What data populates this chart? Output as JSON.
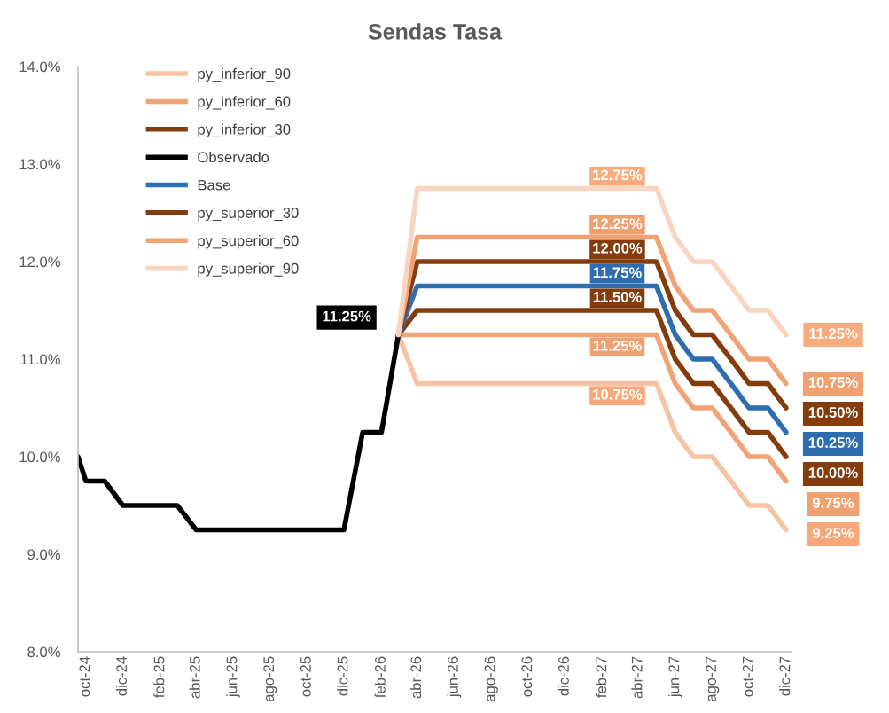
{
  "chart_data": {
    "type": "line",
    "title": "Sendas Tasa",
    "xlim": [
      "2024-09-18",
      "2027-12-10"
    ],
    "xticks": [
      {
        "value": "2024-10",
        "label": "oct-24"
      },
      {
        "value": "2024-12",
        "label": "dic-24"
      },
      {
        "value": "2025-02",
        "label": "feb-25"
      },
      {
        "value": "2025-04",
        "label": "abr-25"
      },
      {
        "value": "2025-06",
        "label": "jun-25"
      },
      {
        "value": "2025-08",
        "label": "ago-25"
      },
      {
        "value": "2025-10",
        "label": "oct-25"
      },
      {
        "value": "2025-12",
        "label": "dic-25"
      },
      {
        "value": "2026-02",
        "label": "feb-26"
      },
      {
        "value": "2026-04",
        "label": "abr-26"
      },
      {
        "value": "2026-06",
        "label": "jun-26"
      },
      {
        "value": "2026-08",
        "label": "ago-26"
      },
      {
        "value": "2026-10",
        "label": "oct-26"
      },
      {
        "value": "2026-12",
        "label": "dic-26"
      },
      {
        "value": "2027-02",
        "label": "feb-27"
      },
      {
        "value": "2027-04",
        "label": "abr-27"
      },
      {
        "value": "2027-06",
        "label": "jun-27"
      },
      {
        "value": "2027-08",
        "label": "ago-27"
      },
      {
        "value": "2027-10",
        "label": "oct-27"
      },
      {
        "value": "2027-12",
        "label": "dic-27"
      }
    ],
    "ylim": [
      8,
      14
    ],
    "yticks": [
      {
        "value": 8,
        "label": "8.0%"
      },
      {
        "value": 9,
        "label": "9.0%"
      },
      {
        "value": 10,
        "label": "10.0%"
      },
      {
        "value": 11,
        "label": "11.0%"
      },
      {
        "value": 12,
        "label": "12.0%"
      },
      {
        "value": 13,
        "label": "13.0%"
      },
      {
        "value": 14,
        "label": "14.0%"
      }
    ],
    "grid": false,
    "legend": "top left",
    "marker": "none",
    "line_style": "solid",
    "series": [
      {
        "name": "py_inferior_90",
        "color": "#f6c3a4",
        "x": [
          "2026-03",
          "2026-04",
          "2026-05",
          "2026-06",
          "2026-07",
          "2026-08",
          "2026-09",
          "2026-10",
          "2026-11",
          "2026-12",
          "2027-01",
          "2027-02",
          "2027-03",
          "2027-04",
          "2027-05",
          "2027-06",
          "2027-07",
          "2027-08",
          "2027-09",
          "2027-10",
          "2027-11",
          "2027-12"
        ],
        "values": [
          11.25,
          10.75,
          10.75,
          10.75,
          10.75,
          10.75,
          10.75,
          10.75,
          10.75,
          10.75,
          10.75,
          10.75,
          10.75,
          10.75,
          10.75,
          10.25,
          10.0,
          10.0,
          9.75,
          9.5,
          9.5,
          9.25
        ],
        "value_labels": [
          null,
          null,
          null,
          null,
          null,
          null,
          null,
          null,
          null,
          null,
          null,
          "10.75%",
          null,
          null,
          null,
          null,
          null,
          null,
          null,
          null,
          null,
          "9.25%"
        ]
      },
      {
        "name": "py_inferior_60",
        "color": "#f0a375",
        "x": [
          "2026-03",
          "2026-04",
          "2026-05",
          "2026-06",
          "2026-07",
          "2026-08",
          "2026-09",
          "2026-10",
          "2026-11",
          "2026-12",
          "2027-01",
          "2027-02",
          "2027-03",
          "2027-04",
          "2027-05",
          "2027-06",
          "2027-07",
          "2027-08",
          "2027-09",
          "2027-10",
          "2027-11",
          "2027-12"
        ],
        "values": [
          11.25,
          11.25,
          11.25,
          11.25,
          11.25,
          11.25,
          11.25,
          11.25,
          11.25,
          11.25,
          11.25,
          11.25,
          11.25,
          11.25,
          11.25,
          10.75,
          10.5,
          10.5,
          10.25,
          10.0,
          10.0,
          9.75
        ],
        "value_labels": [
          null,
          null,
          null,
          null,
          null,
          null,
          null,
          null,
          null,
          null,
          null,
          "11.25%",
          null,
          null,
          null,
          null,
          null,
          null,
          null,
          null,
          null,
          "9.75%"
        ]
      },
      {
        "name": "py_inferior_30",
        "color": "#843c0c",
        "x": [
          "2026-03",
          "2026-04",
          "2026-05",
          "2026-06",
          "2026-07",
          "2026-08",
          "2026-09",
          "2026-10",
          "2026-11",
          "2026-12",
          "2027-01",
          "2027-02",
          "2027-03",
          "2027-04",
          "2027-05",
          "2027-06",
          "2027-07",
          "2027-08",
          "2027-09",
          "2027-10",
          "2027-11",
          "2027-12"
        ],
        "values": [
          11.25,
          11.5,
          11.5,
          11.5,
          11.5,
          11.5,
          11.5,
          11.5,
          11.5,
          11.5,
          11.5,
          11.5,
          11.5,
          11.5,
          11.5,
          11.0,
          10.75,
          10.75,
          10.5,
          10.25,
          10.25,
          10.0
        ],
        "value_labels": [
          null,
          null,
          null,
          null,
          null,
          null,
          null,
          null,
          null,
          null,
          null,
          "11.50%",
          null,
          null,
          null,
          null,
          null,
          null,
          null,
          null,
          null,
          "10.00%"
        ]
      },
      {
        "name": "Observado",
        "color": "#000000",
        "x": [
          "2024-09-18",
          "2024-10",
          "2024-11",
          "2024-12",
          "2025-01",
          "2025-02",
          "2025-03",
          "2025-04",
          "2025-05",
          "2025-06",
          "2025-07",
          "2025-08",
          "2025-09",
          "2025-10",
          "2025-11",
          "2025-12",
          "2026-01",
          "2026-02",
          "2026-03"
        ],
        "values": [
          10.0,
          9.75,
          9.75,
          9.5,
          9.5,
          9.5,
          9.5,
          9.25,
          9.25,
          9.25,
          9.25,
          9.25,
          9.25,
          9.25,
          9.25,
          9.25,
          10.25,
          10.25,
          11.25
        ],
        "value_labels": [
          null,
          null,
          null,
          null,
          null,
          null,
          null,
          null,
          null,
          null,
          null,
          null,
          null,
          null,
          null,
          null,
          null,
          null,
          "11.25%"
        ]
      },
      {
        "name": "Base",
        "color": "#2e6eb0",
        "x": [
          "2026-03",
          "2026-04",
          "2026-05",
          "2026-06",
          "2026-07",
          "2026-08",
          "2026-09",
          "2026-10",
          "2026-11",
          "2026-12",
          "2027-01",
          "2027-02",
          "2027-03",
          "2027-04",
          "2027-05",
          "2027-06",
          "2027-07",
          "2027-08",
          "2027-09",
          "2027-10",
          "2027-11",
          "2027-12"
        ],
        "values": [
          11.25,
          11.75,
          11.75,
          11.75,
          11.75,
          11.75,
          11.75,
          11.75,
          11.75,
          11.75,
          11.75,
          11.75,
          11.75,
          11.75,
          11.75,
          11.25,
          11.0,
          11.0,
          10.75,
          10.5,
          10.5,
          10.25
        ],
        "value_labels": [
          null,
          null,
          null,
          null,
          null,
          null,
          null,
          null,
          null,
          null,
          null,
          "11.75%",
          null,
          null,
          null,
          null,
          null,
          null,
          null,
          null,
          null,
          "10.25%"
        ]
      },
      {
        "name": "py_superior_30",
        "color": "#843c0c",
        "x": [
          "2026-03",
          "2026-04",
          "2026-05",
          "2026-06",
          "2026-07",
          "2026-08",
          "2026-09",
          "2026-10",
          "2026-11",
          "2026-12",
          "2027-01",
          "2027-02",
          "2027-03",
          "2027-04",
          "2027-05",
          "2027-06",
          "2027-07",
          "2027-08",
          "2027-09",
          "2027-10",
          "2027-11",
          "2027-12"
        ],
        "values": [
          11.25,
          12.0,
          12.0,
          12.0,
          12.0,
          12.0,
          12.0,
          12.0,
          12.0,
          12.0,
          12.0,
          12.0,
          12.0,
          12.0,
          12.0,
          11.5,
          11.25,
          11.25,
          11.0,
          10.75,
          10.75,
          10.5
        ],
        "value_labels": [
          null,
          null,
          null,
          null,
          null,
          null,
          null,
          null,
          null,
          null,
          null,
          "12.00%",
          null,
          null,
          null,
          null,
          null,
          null,
          null,
          null,
          null,
          "10.50%"
        ]
      },
      {
        "name": "py_superior_60",
        "color": "#f0a375",
        "x": [
          "2026-03",
          "2026-04",
          "2026-05",
          "2026-06",
          "2026-07",
          "2026-08",
          "2026-09",
          "2026-10",
          "2026-11",
          "2026-12",
          "2027-01",
          "2027-02",
          "2027-03",
          "2027-04",
          "2027-05",
          "2027-06",
          "2027-07",
          "2027-08",
          "2027-09",
          "2027-10",
          "2027-11",
          "2027-12"
        ],
        "values": [
          11.25,
          12.25,
          12.25,
          12.25,
          12.25,
          12.25,
          12.25,
          12.25,
          12.25,
          12.25,
          12.25,
          12.25,
          12.25,
          12.25,
          12.25,
          11.75,
          11.5,
          11.5,
          11.25,
          11.0,
          11.0,
          10.75
        ],
        "value_labels": [
          null,
          null,
          null,
          null,
          null,
          null,
          null,
          null,
          null,
          null,
          null,
          "12.25%",
          null,
          null,
          null,
          null,
          null,
          null,
          null,
          null,
          null,
          "10.75%"
        ]
      },
      {
        "name": "py_superior_90",
        "color": "#f8d5c0",
        "x": [
          "2026-03",
          "2026-04",
          "2026-05",
          "2026-06",
          "2026-07",
          "2026-08",
          "2026-09",
          "2026-10",
          "2026-11",
          "2026-12",
          "2027-01",
          "2027-02",
          "2027-03",
          "2027-04",
          "2027-05",
          "2027-06",
          "2027-07",
          "2027-08",
          "2027-09",
          "2027-10",
          "2027-11",
          "2027-12"
        ],
        "values": [
          11.25,
          12.75,
          12.75,
          12.75,
          12.75,
          12.75,
          12.75,
          12.75,
          12.75,
          12.75,
          12.75,
          12.75,
          12.75,
          12.75,
          12.75,
          12.25,
          12.0,
          12.0,
          11.75,
          11.5,
          11.5,
          11.25
        ],
        "value_labels": [
          null,
          null,
          null,
          null,
          null,
          null,
          null,
          null,
          null,
          null,
          null,
          "12.75%",
          null,
          null,
          null,
          null,
          null,
          null,
          null,
          null,
          null,
          "11.25%"
        ]
      }
    ]
  }
}
